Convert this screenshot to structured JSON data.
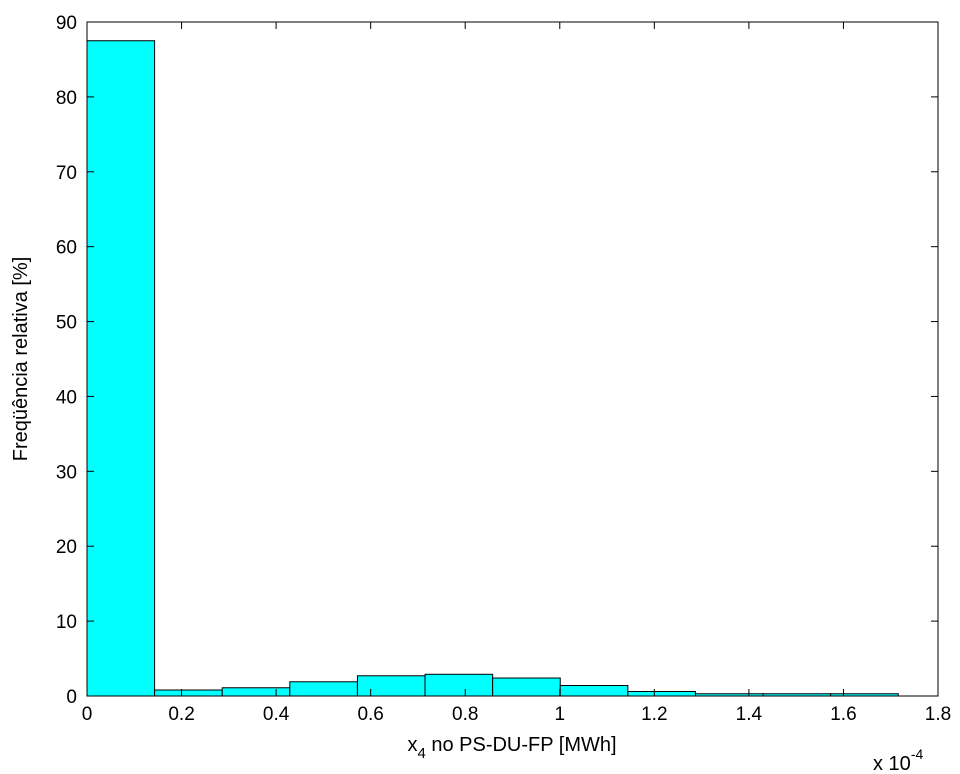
{
  "chart_data": {
    "type": "bar",
    "title": "",
    "xlabel_main": "x",
    "xlabel_sub": "4",
    "xlabel_rest": " no PS-DU-FP [MWh]",
    "ylabel": "Freqüência relativa [%]",
    "x_multiplier_base": "x 10",
    "x_multiplier_exp": "-4",
    "xlim": [
      0,
      1.8
    ],
    "ylim": [
      0,
      90
    ],
    "xticks": [
      0,
      0.2,
      0.4,
      0.6,
      0.8,
      1,
      1.2,
      1.4,
      1.6,
      1.8
    ],
    "xtick_labels": [
      "0",
      "0.2",
      "0.4",
      "0.6",
      "0.8",
      "1",
      "1.2",
      "1.4",
      "1.6",
      "1.8"
    ],
    "yticks": [
      0,
      10,
      20,
      30,
      40,
      50,
      60,
      70,
      80,
      90
    ],
    "ytick_labels": [
      "0",
      "10",
      "20",
      "30",
      "40",
      "50",
      "60",
      "70",
      "80",
      "90"
    ],
    "bin_edges": [
      0,
      0.143,
      0.286,
      0.429,
      0.572,
      0.715,
      0.858,
      1.001,
      1.144,
      1.287,
      1.43,
      1.573,
      1.716
    ],
    "values": [
      87.5,
      0.8,
      1.1,
      1.9,
      2.7,
      2.9,
      2.4,
      1.4,
      0.6,
      0.3,
      0.3,
      0.3
    ],
    "bar_color": "#00ffff",
    "edge_color": "#000000",
    "grid": false
  }
}
